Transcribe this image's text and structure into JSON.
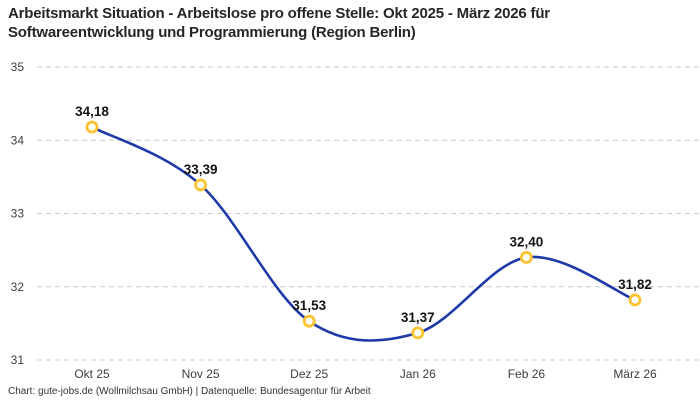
{
  "title": {
    "lines": [
      "Arbeitsmarkt Situation - Arbeitslose pro offene Stelle: Okt 2025 - März 2026 für",
      "Softwareentwicklung und Programmierung (Region Berlin)"
    ]
  },
  "footer": {
    "text": "Chart: gute-jobs.de (Wollmilchsau GmbH) | Datenquelle: Bundesagentur für Arbeit"
  },
  "chart_data": {
    "type": "line",
    "title": "Arbeitsmarkt Situation - Arbeitslose pro offene Stelle: Okt 2025 - März 2026 für Softwareentwicklung und Programmierung (Region Berlin)",
    "categories": [
      "Okt 25",
      "Nov 25",
      "Dez 25",
      "Jan 26",
      "Feb 26",
      "März 26"
    ],
    "values": [
      34.18,
      33.39,
      31.53,
      31.37,
      32.4,
      31.82
    ],
    "value_labels": [
      "34,18",
      "33,39",
      "31,53",
      "31,37",
      "32,40",
      "31,82"
    ],
    "y_ticks": [
      31,
      32,
      33,
      34,
      35
    ],
    "ylim": [
      31,
      35
    ],
    "xlabel": "",
    "ylabel": "",
    "grid": "horizontal-dashed",
    "legend": "none",
    "line_color": "#1e3aa8",
    "marker_color": "#fcc330",
    "marker_fill": "#ffffff",
    "grid_color": "#c9c9c9"
  }
}
